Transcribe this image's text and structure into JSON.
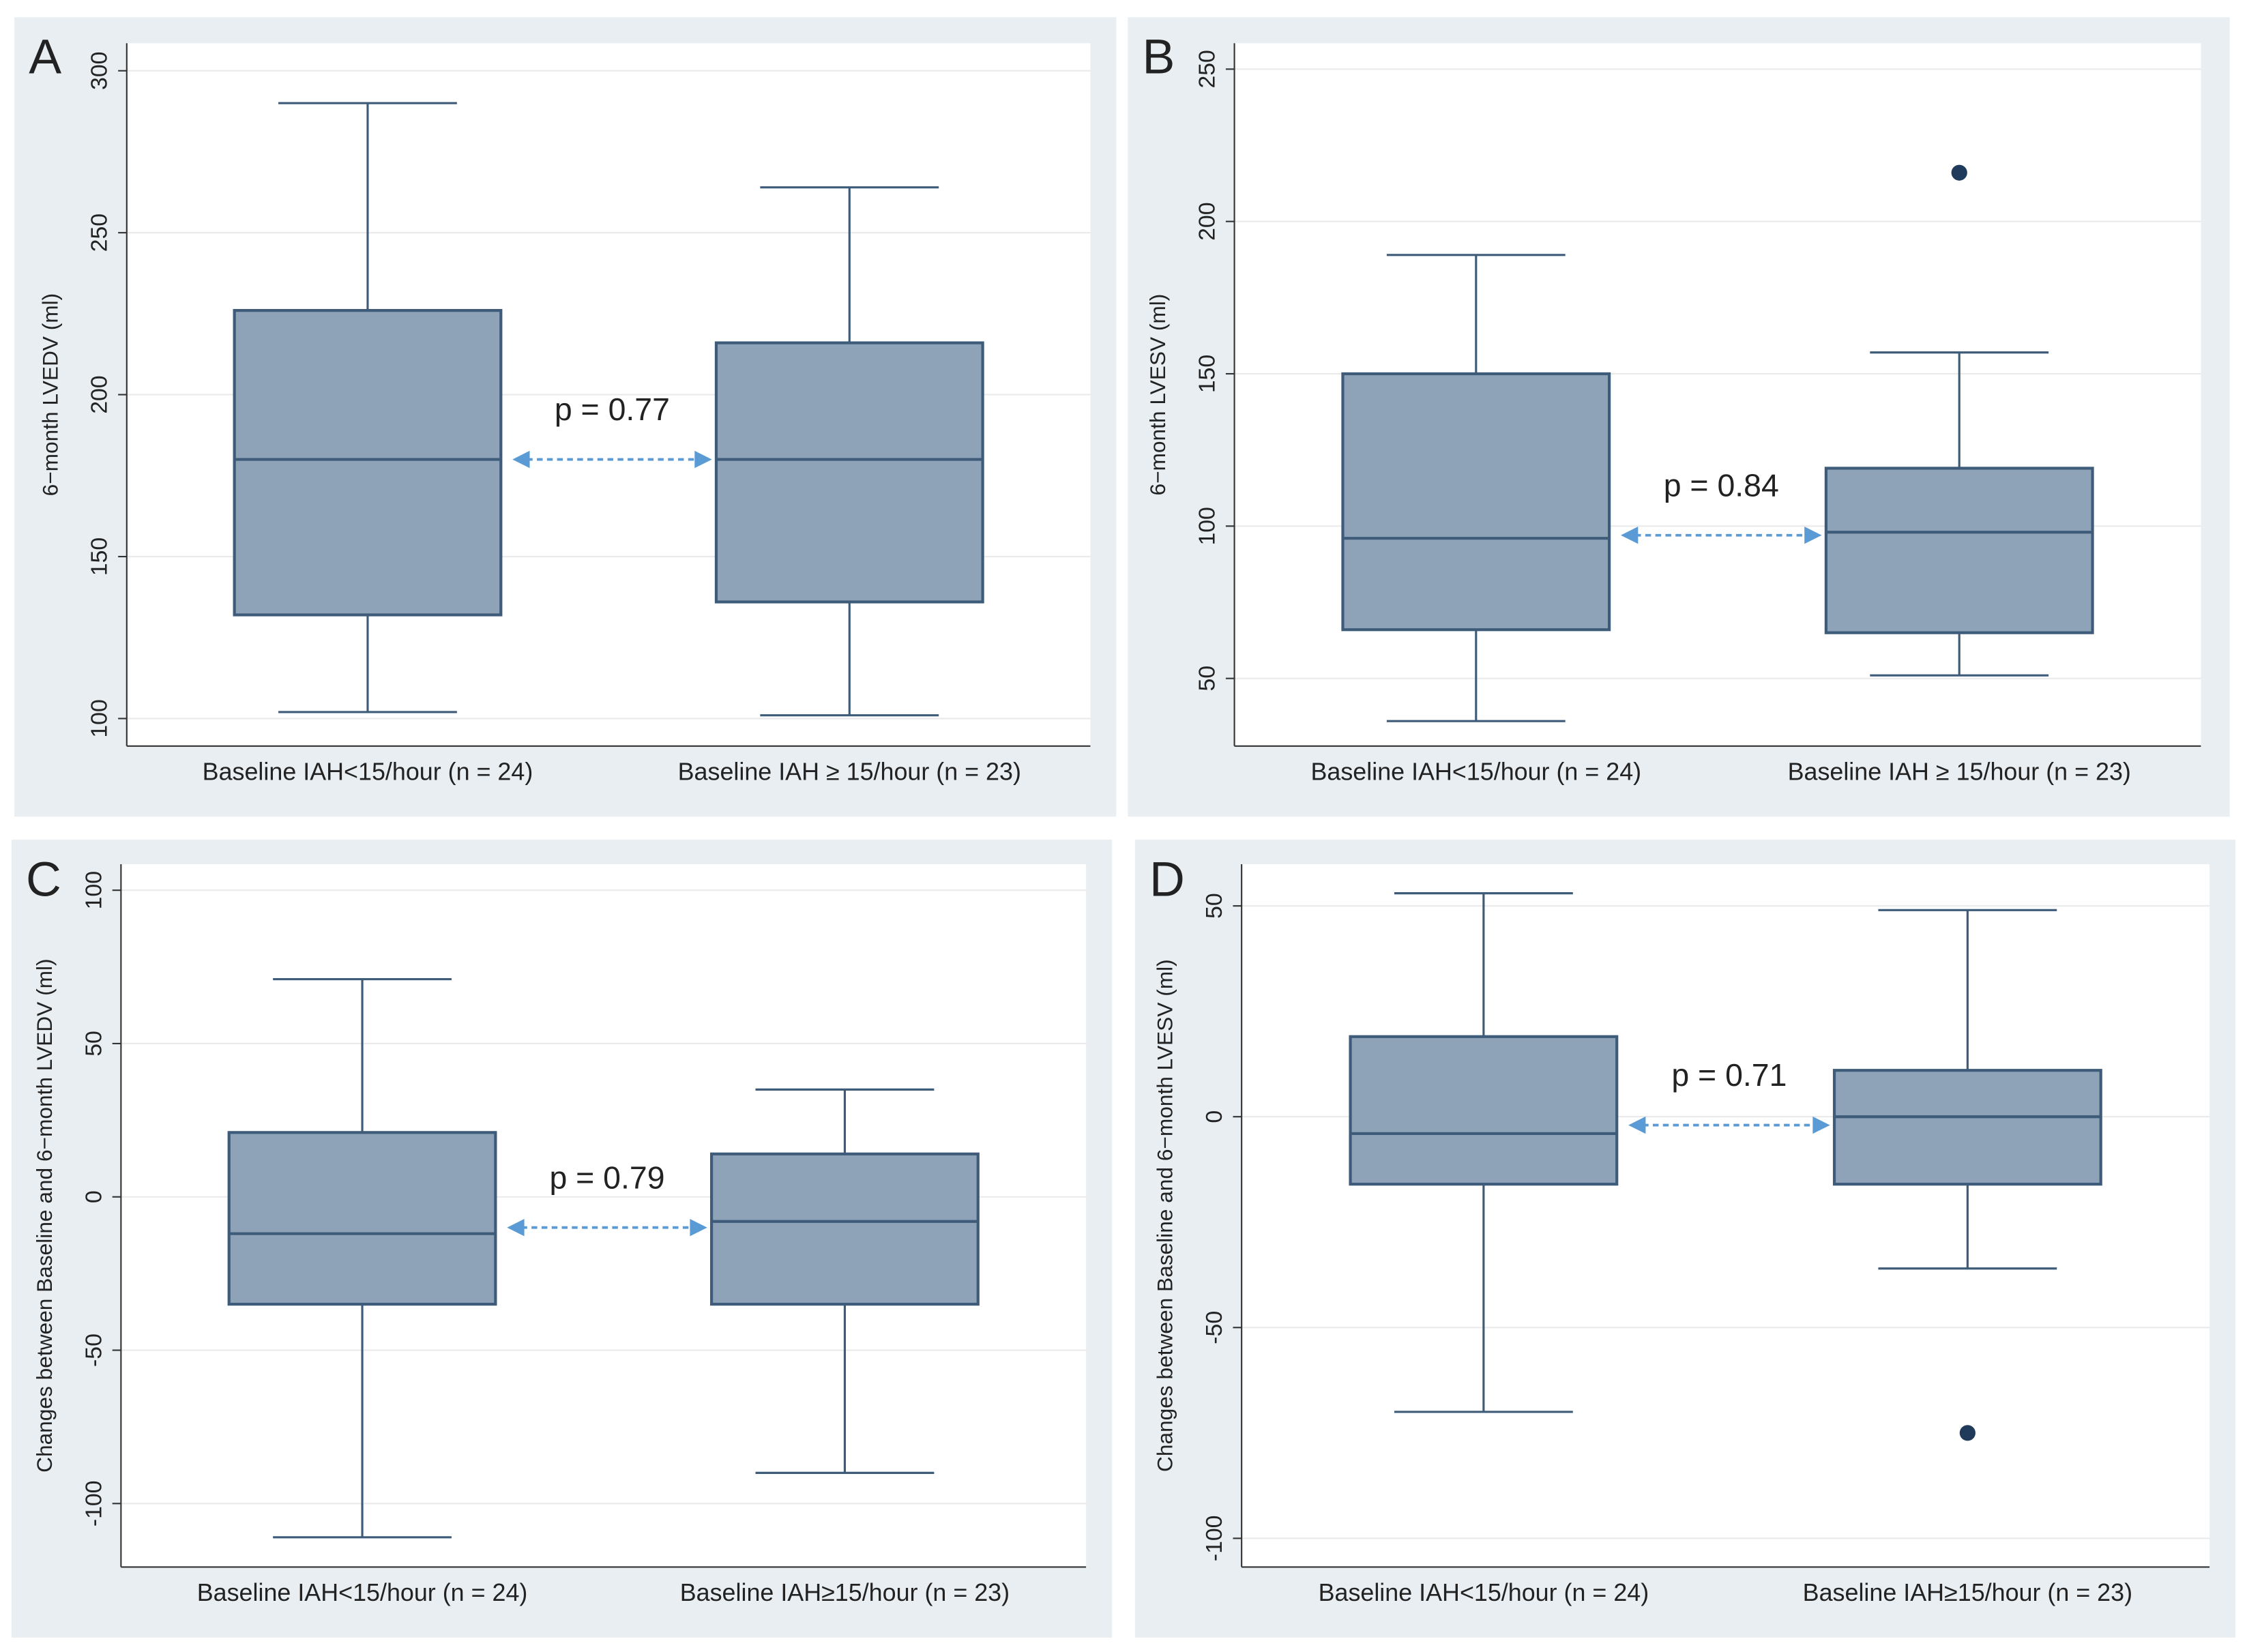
{
  "chart_data": [
    {
      "type": "box",
      "panel_label": "A",
      "ylabel": "6−month LVEDV (ml)",
      "annotation": "p = 0.77",
      "categories": [
        "Baseline IAH<15/hour  (n = 24)",
        "Baseline IAH ≥ 15/hour (n = 23)"
      ],
      "boxes": [
        {
          "whisker_low": 102,
          "q1": 132,
          "median": 180,
          "q3": 226,
          "whisker_high": 290,
          "outliers": []
        },
        {
          "whisker_low": 101,
          "q1": 136,
          "median": 180,
          "q3": 216,
          "whisker_high": 264,
          "outliers": []
        }
      ],
      "color": "#8ea3b8",
      "ylim": [
        91.5,
        308.5
      ],
      "yticks": [
        100,
        150,
        200,
        250,
        300
      ],
      "grid": true
    },
    {
      "type": "box",
      "panel_label": "B",
      "ylabel": "6−month LVESV (ml)",
      "annotation": "p = 0.84",
      "categories": [
        "Baseline IAH<15/hour  (n = 24)",
        "Baseline IAH ≥ 15/hour (n = 23)"
      ],
      "boxes": [
        {
          "whisker_low": 36,
          "q1": 66,
          "median": 96,
          "q3": 150,
          "whisker_high": 189,
          "outliers": []
        },
        {
          "whisker_low": 51,
          "q1": 65,
          "median": 98,
          "q3": 119,
          "whisker_high": 157,
          "outliers": [
            216
          ]
        }
      ],
      "color": "#8ea3b8",
      "ylim": [
        27.8,
        258.5
      ],
      "yticks": [
        50,
        100,
        150,
        200,
        250
      ],
      "grid": true
    },
    {
      "type": "box",
      "panel_label": "C",
      "ylabel": "Changes between Baseline and 6−month LVEDV (ml)",
      "annotation": "p = 0.79",
      "categories": [
        "Baseline IAH<15/hour  (n = 24)",
        "Baseline IAH≥15/hour  (n = 23)"
      ],
      "boxes": [
        {
          "whisker_low": -111,
          "q1": -35,
          "median": -12,
          "q3": 21,
          "whisker_high": 71,
          "outliers": []
        },
        {
          "whisker_low": -90,
          "q1": -35,
          "median": -8,
          "q3": 14,
          "whisker_high": 35,
          "outliers": []
        }
      ],
      "color": "#8ea3b8",
      "ylim": [
        -120.7,
        108.5
      ],
      "yticks": [
        -100,
        -50,
        0,
        50,
        100
      ],
      "grid": true
    },
    {
      "type": "box",
      "panel_label": "D",
      "ylabel": "Changes between Baseline and 6−month LVESV (ml)",
      "annotation": "p = 0.71",
      "categories": [
        "Baseline IAH<15/hour  (n = 24)",
        "Baseline IAH≥15/hour  (n = 23)"
      ],
      "boxes": [
        {
          "whisker_low": -70,
          "q1": -16,
          "median": -4,
          "q3": 19,
          "whisker_high": 53,
          "outliers": []
        },
        {
          "whisker_low": -36,
          "q1": -16,
          "median": 0,
          "q3": 11,
          "whisker_high": 49,
          "outliers": [
            -75
          ]
        }
      ],
      "color": "#8ea3b8",
      "ylim": [
        -106.8,
        59.9
      ],
      "yticks": [
        -100,
        -50,
        0,
        50
      ],
      "grid": true
    }
  ]
}
